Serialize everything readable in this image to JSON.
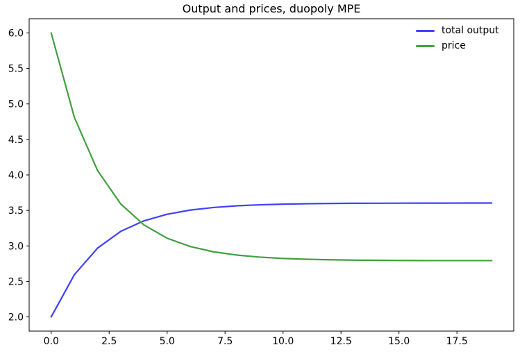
{
  "title": "Output and prices, duopoly MPE",
  "legend": {
    "position": "upper right",
    "items": [
      {
        "label": "total output",
        "color": "#4040ff"
      },
      {
        "label": "price",
        "color": "#40a040"
      }
    ]
  },
  "colors": {
    "total_output_line": "#4040ff",
    "price_line": "#40a040",
    "axes_frame": "#000000",
    "text": "#000000",
    "background": "#ffffff"
  },
  "chart_data": {
    "type": "line",
    "title": "Output and prices, duopoly MPE",
    "xlabel": "",
    "ylabel": "",
    "grid": false,
    "legend_position": "upper right",
    "xlim": [
      -0.95,
      19.95
    ],
    "ylim": [
      1.8,
      6.2
    ],
    "x": [
      0,
      1,
      2,
      3,
      4,
      5,
      6,
      7,
      8,
      9,
      10,
      11,
      12,
      13,
      14,
      15,
      16,
      17,
      18,
      19
    ],
    "series": [
      {
        "name": "total output",
        "color": "#4040ff",
        "values": [
          2.0,
          2.595,
          2.969,
          3.205,
          3.353,
          3.446,
          3.505,
          3.541,
          3.565,
          3.579,
          3.588,
          3.594,
          3.598,
          3.6,
          3.601,
          3.602,
          3.603,
          3.603,
          3.604,
          3.604
        ]
      },
      {
        "name": "price",
        "color": "#40a040",
        "values": [
          6.0,
          4.81,
          4.062,
          3.591,
          3.295,
          3.108,
          2.991,
          2.917,
          2.871,
          2.842,
          2.823,
          2.812,
          2.805,
          2.8,
          2.797,
          2.795,
          2.794,
          2.793,
          2.793,
          2.793
        ]
      }
    ],
    "x_ticks": [
      0,
      2.5,
      5,
      7.5,
      10,
      12.5,
      15,
      17.5
    ],
    "x_tick_labels": [
      "0.0",
      "2.5",
      "5.0",
      "7.5",
      "10.0",
      "12.5",
      "15.0",
      "17.5"
    ],
    "y_ticks": [
      2,
      2.5,
      3,
      3.5,
      4,
      4.5,
      5,
      5.5,
      6
    ],
    "y_tick_labels": [
      "2.0",
      "2.5",
      "3.0",
      "3.5",
      "4.0",
      "4.5",
      "5.0",
      "5.5",
      "6.0"
    ]
  }
}
